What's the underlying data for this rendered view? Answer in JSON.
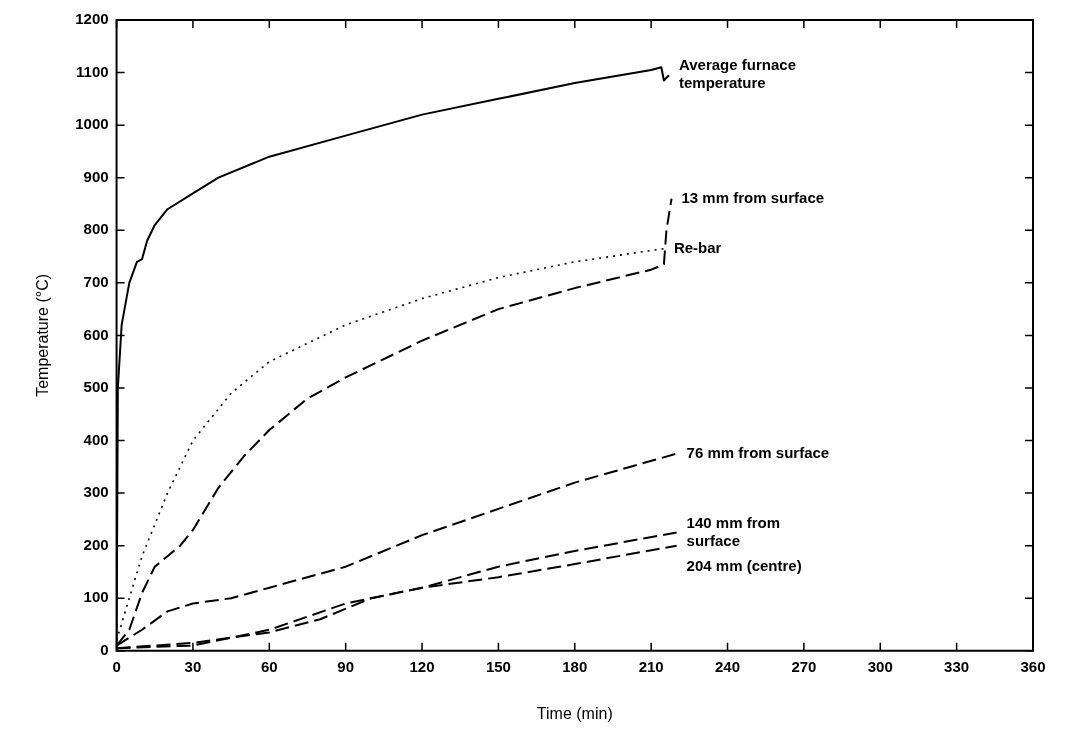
{
  "chart_data": {
    "type": "line",
    "xlabel": "Time (min)",
    "ylabel": "Temperature (°C)",
    "xlim": [
      0,
      360
    ],
    "xticks": [
      0,
      30,
      60,
      90,
      120,
      150,
      180,
      210,
      240,
      270,
      300,
      330,
      360
    ],
    "ylim": [
      0,
      1200
    ],
    "yticks": [
      0,
      100,
      200,
      300,
      400,
      500,
      600,
      700,
      800,
      900,
      1000,
      1100,
      1200
    ],
    "grid": false,
    "legend": false,
    "marker": "none",
    "series": [
      {
        "name": "Average furnace temperature",
        "color": "#000000",
        "line_style": "solid",
        "x": [
          0,
          0.5,
          2,
          5,
          8,
          10,
          12,
          15,
          20,
          30,
          40,
          60,
          90,
          120,
          150,
          180,
          210,
          214,
          215,
          217
        ],
        "values": [
          0,
          500,
          620,
          700,
          740,
          745,
          780,
          810,
          840,
          870,
          900,
          940,
          980,
          1020,
          1050,
          1080,
          1105,
          1110,
          1085,
          1095
        ]
      },
      {
        "name": "13 mm from surface",
        "color": "#000000",
        "line_style": "dashed",
        "x": [
          0,
          5,
          10,
          15,
          20,
          25,
          30,
          40,
          50,
          60,
          75,
          90,
          120,
          150,
          180,
          210,
          215,
          216,
          218
        ],
        "values": [
          10,
          40,
          110,
          160,
          180,
          200,
          230,
          310,
          370,
          420,
          480,
          520,
          590,
          650,
          690,
          725,
          735,
          800,
          860
        ]
      },
      {
        "name": "Re-bar",
        "color": "#000000",
        "line_style": "dotted",
        "x": [
          0,
          5,
          10,
          20,
          30,
          45,
          60,
          90,
          120,
          150,
          180,
          215
        ],
        "values": [
          20,
          100,
          180,
          300,
          400,
          490,
          550,
          620,
          670,
          710,
          740,
          765
        ]
      },
      {
        "name": "76 mm from surface",
        "color": "#000000",
        "line_style": "dashed",
        "x": [
          0,
          10,
          20,
          30,
          45,
          60,
          90,
          120,
          150,
          180,
          220
        ],
        "values": [
          10,
          40,
          75,
          90,
          100,
          120,
          160,
          220,
          270,
          320,
          375
        ]
      },
      {
        "name": "140 mm from surface",
        "color": "#000000",
        "line_style": "dashed",
        "x": [
          0,
          30,
          60,
          90,
          120,
          150,
          180,
          220
        ],
        "values": [
          5,
          10,
          40,
          90,
          120,
          160,
          190,
          225
        ]
      },
      {
        "name": "204 mm (centre)",
        "color": "#000000",
        "line_style": "dashed",
        "x": [
          0,
          30,
          60,
          80,
          100,
          120,
          150,
          180,
          220
        ],
        "values": [
          5,
          15,
          35,
          60,
          100,
          120,
          140,
          165,
          200
        ]
      }
    ]
  }
}
